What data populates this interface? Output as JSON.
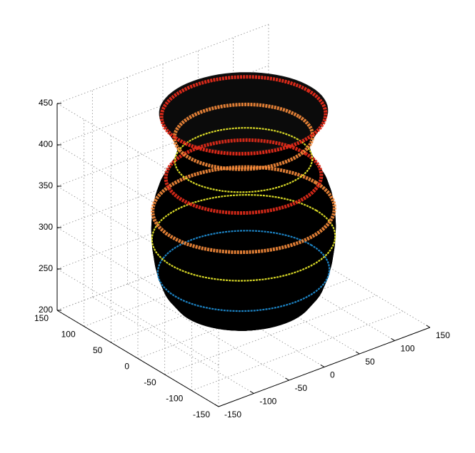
{
  "chart_data": {
    "type": "surface3d",
    "title": "",
    "xlabel": "",
    "ylabel": "",
    "zlabel": "",
    "grid": true,
    "box": "open",
    "xlim": [
      -150,
      150
    ],
    "ylim": [
      -150,
      150
    ],
    "zlim": [
      200,
      450
    ],
    "x_ticks": [
      "-150",
      "-100",
      "-50",
      "0",
      "50",
      "100",
      "150"
    ],
    "y_ticks": [
      "150",
      "100",
      "50",
      "0",
      "-50",
      "-100",
      "-150"
    ],
    "z_ticks": [
      "450",
      "400",
      "350",
      "300",
      "250",
      "200"
    ],
    "surface": {
      "shape": "vase of revolution",
      "edge_color": "#000000",
      "colormap": "jet",
      "profile_z": [
        205,
        215,
        225,
        240,
        255,
        270,
        290,
        310,
        330,
        345,
        360,
        375,
        390,
        405,
        415,
        425,
        435,
        445,
        450
      ],
      "profile_r": [
        38,
        58,
        78,
        90,
        96,
        100,
        103,
        104,
        103,
        100,
        95,
        86,
        78,
        74,
        76,
        80,
        86,
        92,
        95
      ],
      "colored_bands": [
        {
          "z": 258,
          "color": "#1f8fd6"
        },
        {
          "z": 298,
          "color": "#ecec2a"
        },
        {
          "z": 332,
          "color": "#f58a3a"
        },
        {
          "z": 372,
          "color": "#e32b1a"
        },
        {
          "z": 392,
          "color": "#ecec2a"
        },
        {
          "z": 420,
          "color": "#f58a3a"
        },
        {
          "z": 446,
          "color": "#e32b1a"
        }
      ]
    }
  }
}
